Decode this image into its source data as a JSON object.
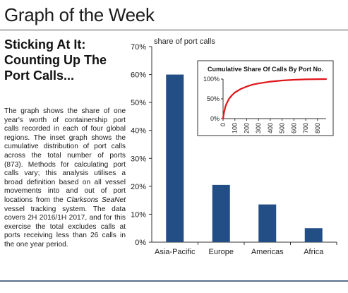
{
  "header": {
    "title": "Graph of the Week"
  },
  "article": {
    "headline": "Sticking At It: Counting Up The Port Calls...",
    "body_before": "The graph shows the share of one year's worth of containership port calls recorded in each of four global regions. The inset graph shows the cumulative distribution of port calls across the total number of ports (873). Methods for calculating port calls vary; this analysis utilises a broad definition based on all vessel movements into and out of port locations from the ",
    "body_italic": "Clarksons SeaNet",
    "body_after": " vessel tracking system. The data covers 2H 2016/1H 2017, and for this exercise the total excludes calls at ports receiving less than 26 calls in the one year period."
  },
  "colors": {
    "bar": "#234e85",
    "inset_line": "#e0151b",
    "rule": "#5a6f8c"
  },
  "chart_data": [
    {
      "type": "bar",
      "title": "",
      "ylabel": "share of port calls",
      "xlabel": "",
      "categories": [
        "Asia-Pacific",
        "Europe",
        "Americas",
        "Africa"
      ],
      "values": [
        60,
        20.5,
        13.5,
        5
      ],
      "ylim": [
        0,
        70
      ],
      "yticks": [
        "0%",
        "10%",
        "20%",
        "30%",
        "40%",
        "50%",
        "60%",
        "70%"
      ],
      "grid": false
    },
    {
      "type": "line",
      "title": "Cumulative  Share Of Calls By Port No.",
      "xlabel": "",
      "ylabel": "",
      "x": [
        0,
        5,
        10,
        20,
        30,
        50,
        75,
        100,
        150,
        200,
        250,
        300,
        400,
        500,
        600,
        700,
        800,
        873
      ],
      "y": [
        0,
        10,
        18,
        30,
        38,
        50,
        59,
        66,
        75,
        81,
        86,
        89,
        93.5,
        96.5,
        98.3,
        99.3,
        99.8,
        100
      ],
      "xlim": [
        0,
        873
      ],
      "ylim": [
        0,
        100
      ],
      "xticks": [
        "0",
        "100",
        "200",
        "300",
        "400",
        "500",
        "600",
        "700",
        "800"
      ],
      "yticks": [
        "0%",
        "50%",
        "100%"
      ],
      "grid": false
    }
  ]
}
